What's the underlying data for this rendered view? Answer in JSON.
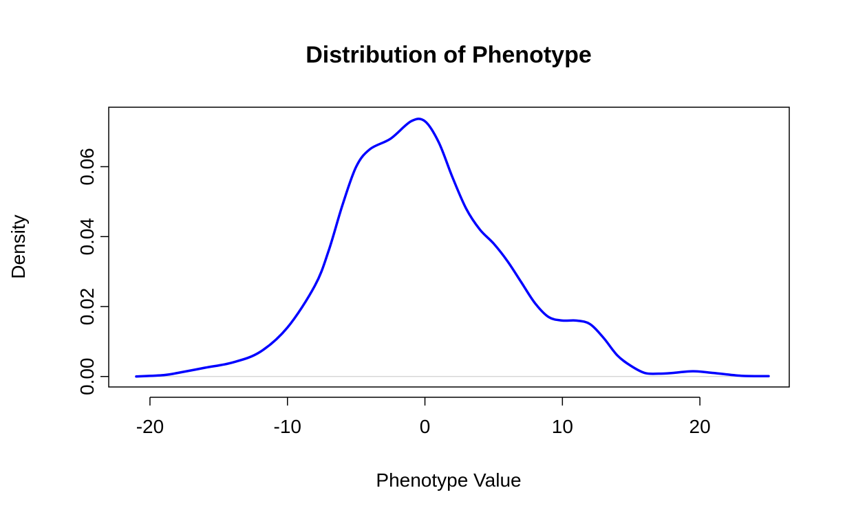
{
  "chart_data": {
    "type": "line",
    "title": "Distribution of Phenotype",
    "xlabel": "Phenotype Value",
    "ylabel": "Density",
    "xlim": [
      -23,
      26.5
    ],
    "ylim": [
      -0.003,
      0.077
    ],
    "x_ticks": [
      -20,
      -10,
      0,
      10,
      20
    ],
    "x_tick_labels": [
      "-20",
      "-10",
      "0",
      "10",
      "20"
    ],
    "y_ticks": [
      0.0,
      0.02,
      0.04,
      0.06
    ],
    "y_tick_labels": [
      "0.00",
      "0.02",
      "0.04",
      "0.06"
    ],
    "grid": false,
    "legend": "none",
    "baseline_y": 0,
    "line_color": "#0000ff",
    "baseline_color": "#d0d0d0",
    "series": [
      {
        "x": [
          -21,
          -19,
          -18,
          -16,
          -14,
          -12,
          -10,
          -8,
          -7,
          -6,
          -5,
          -4,
          -2.5,
          -1,
          0,
          1,
          2,
          3,
          4,
          5,
          6,
          7,
          8,
          9,
          10,
          11,
          12,
          13,
          14,
          15,
          16,
          17,
          18,
          19.5,
          21,
          23,
          25
        ],
        "y": [
          0.0,
          0.0004,
          0.001,
          0.0025,
          0.004,
          0.007,
          0.014,
          0.026,
          0.036,
          0.049,
          0.06,
          0.065,
          0.068,
          0.073,
          0.073,
          0.067,
          0.057,
          0.048,
          0.042,
          0.038,
          0.033,
          0.027,
          0.021,
          0.017,
          0.016,
          0.016,
          0.015,
          0.011,
          0.006,
          0.003,
          0.001,
          0.0008,
          0.001,
          0.0015,
          0.001,
          0.0002,
          0.0001
        ]
      }
    ]
  }
}
